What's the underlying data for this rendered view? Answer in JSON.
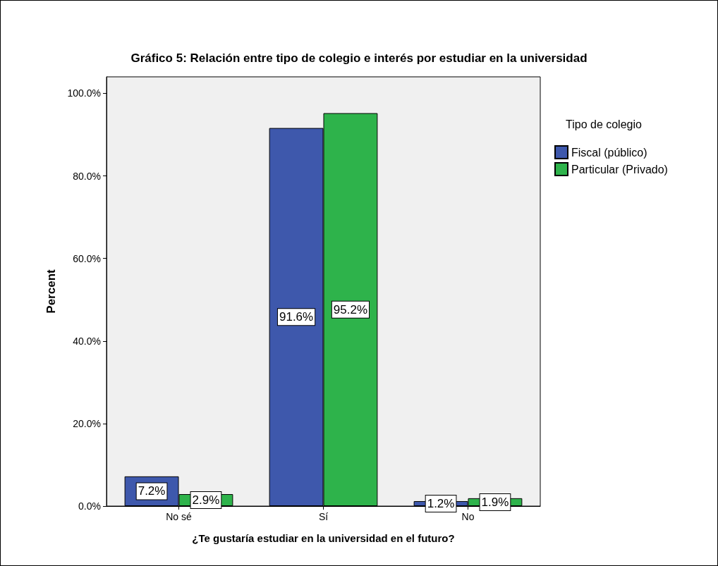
{
  "chart_data": {
    "type": "bar",
    "title": "Gráfico 5: Relación entre tipo de colegio e interés por estudiar en la universidad",
    "xlabel": "¿Te gustaría estudiar en la universidad en el futuro?",
    "ylabel": "Percent",
    "legend_title": "Tipo de colegio",
    "categories": [
      "No sé",
      "Sí",
      "No"
    ],
    "series": [
      {
        "name": "Fiscal (público)",
        "color": "#3e58ac",
        "values": [
          7.2,
          91.6,
          1.2
        ],
        "value_labels": [
          "7.2%",
          "91.6%",
          "1.2%"
        ]
      },
      {
        "name": "Particular (Privado)",
        "color": "#2eb34b",
        "values": [
          2.9,
          95.2,
          1.9
        ],
        "value_labels": [
          "2.9%",
          "95.2%",
          "1.9%"
        ]
      }
    ],
    "ylim": [
      0,
      104
    ],
    "yticks": [
      {
        "value": 0,
        "label": "0.0%"
      },
      {
        "value": 20,
        "label": "20.0%"
      },
      {
        "value": 40,
        "label": "40.0%"
      },
      {
        "value": 60,
        "label": "60.0%"
      },
      {
        "value": 80,
        "label": "80.0%"
      },
      {
        "value": 100,
        "label": "100.0%"
      }
    ],
    "grid": false,
    "legend": "right"
  }
}
